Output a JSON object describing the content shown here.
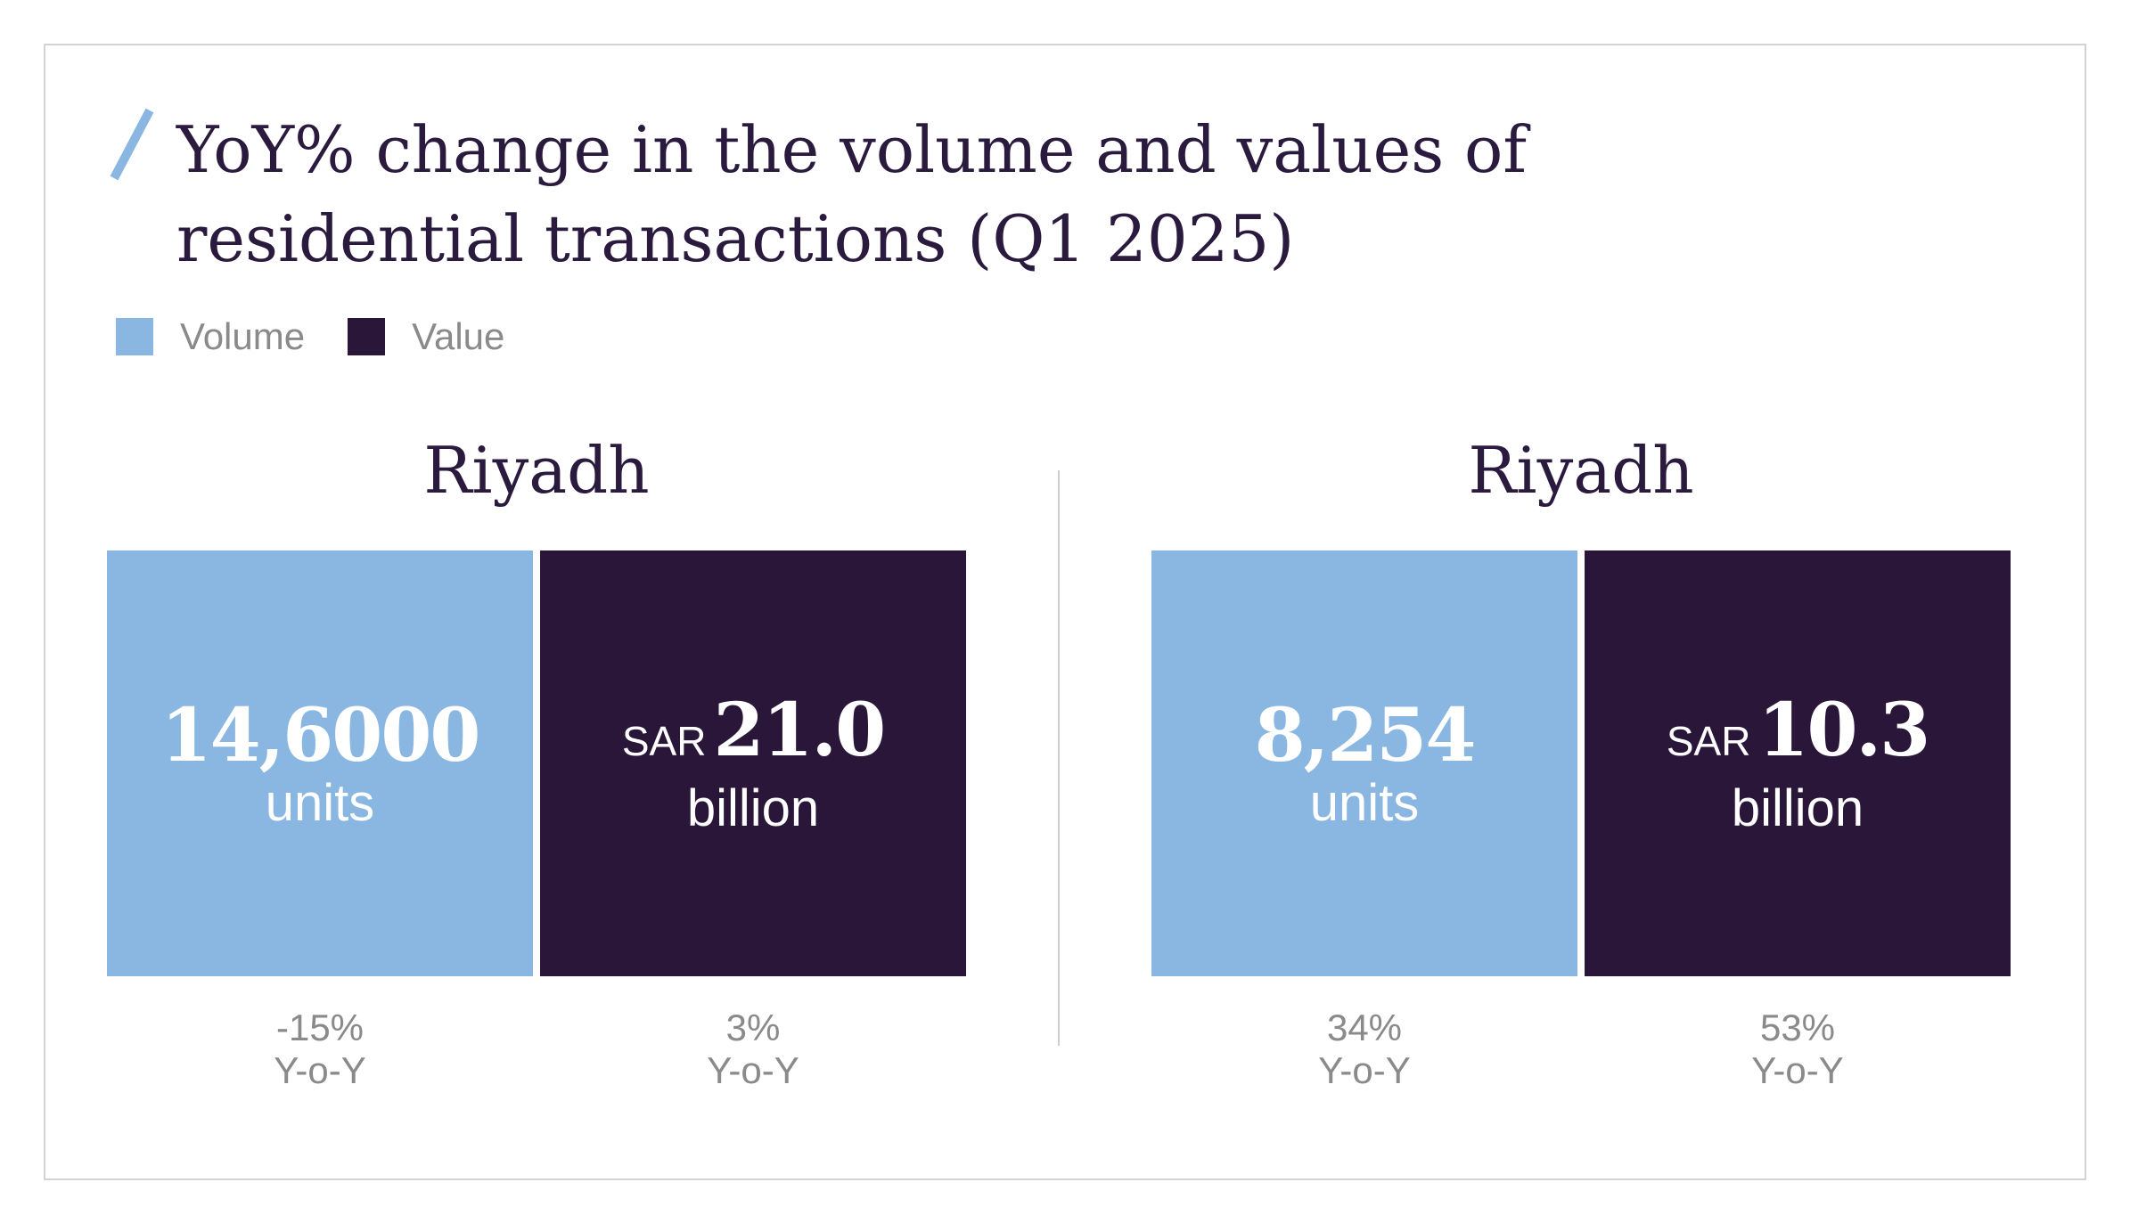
{
  "title": "YoY% change in the volume and values of residential transactions (Q1 2025)",
  "colors": {
    "volume": "#8ab7e1",
    "value": "#2a1639",
    "text_dark": "#2a1a3e",
    "text_muted": "#8a8a8a",
    "accent_slash": "#8ab7e1"
  },
  "legend": [
    {
      "label": "Volume",
      "color": "#8ab7e1"
    },
    {
      "label": "Value",
      "color": "#2a1639"
    }
  ],
  "chart_data": [
    {
      "type": "table",
      "city": "Riyadh",
      "volume": {
        "number": "14,6000",
        "unit": "units",
        "yoy_pct": -15,
        "yoy_text": "-15%",
        "yoy_label": "Y-o-Y"
      },
      "value": {
        "prefix": "SAR",
        "number": "21.0",
        "unit": "billion",
        "yoy_pct": 3,
        "yoy_text": "3%",
        "yoy_label": "Y-o-Y"
      }
    },
    {
      "type": "table",
      "city": "Riyadh",
      "volume": {
        "number": "8,254",
        "unit": "units",
        "yoy_pct": 34,
        "yoy_text": "34%",
        "yoy_label": "Y-o-Y"
      },
      "value": {
        "prefix": "SAR",
        "number": "10.3",
        "unit": "billion",
        "yoy_pct": 53,
        "yoy_text": "53%",
        "yoy_label": "Y-o-Y"
      }
    }
  ]
}
